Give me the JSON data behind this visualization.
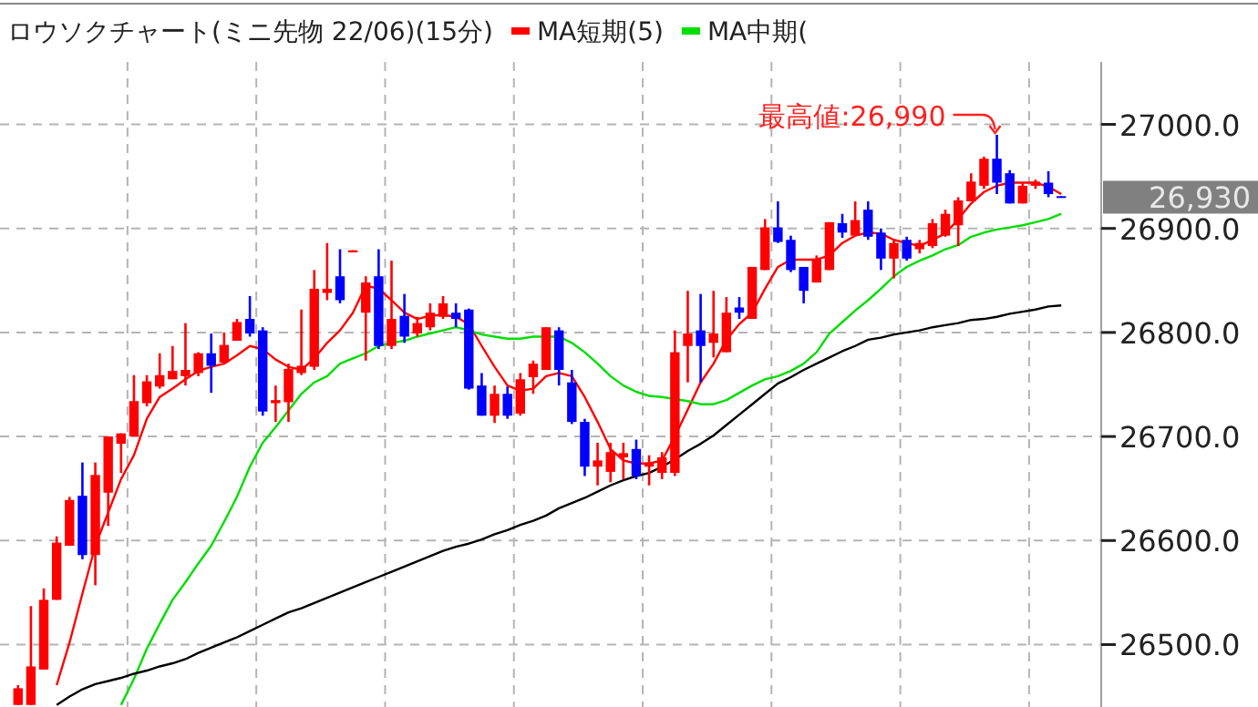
{
  "chart_data": {
    "type": "candlestick",
    "title": "ロウソクチャート(ミニ先物 22/06)(15分)",
    "categories": [
      null,
      null,
      null,
      null,
      null,
      null,
      null,
      null,
      null,
      null,
      null,
      null,
      null,
      null,
      null,
      null,
      null,
      null,
      null,
      null,
      null,
      null,
      null,
      null,
      null,
      null,
      null,
      null,
      null,
      null,
      null,
      null,
      null,
      null,
      null,
      null,
      null,
      null,
      null,
      null,
      null,
      null,
      null,
      null,
      null,
      null,
      null,
      null,
      null,
      null,
      null,
      null,
      null,
      null,
      null,
      null,
      null,
      null,
      null,
      null,
      null,
      null,
      null,
      null,
      null,
      null,
      null,
      null,
      null,
      null,
      null,
      null,
      null,
      null,
      null,
      null,
      null,
      null,
      null,
      null,
      null,
      null
    ],
    "ohlc": [
      [
        26442,
        26461,
        26442,
        26458
      ],
      [
        26442,
        26537,
        26442,
        26479
      ],
      [
        26476,
        26554,
        26476,
        26543
      ],
      [
        26543,
        26604,
        26543,
        26598
      ],
      [
        26595,
        26642,
        26595,
        26639
      ],
      [
        26643,
        26675,
        26582,
        26586
      ],
      [
        26586,
        26675,
        26557,
        26663
      ],
      [
        26646,
        26700,
        26614,
        26700
      ],
      [
        26693,
        26703,
        26665,
        26703
      ],
      [
        26700,
        26759,
        26700,
        26734
      ],
      [
        26732,
        26759,
        26729,
        26753
      ],
      [
        26748,
        26780,
        26746,
        26759
      ],
      [
        26755,
        26787,
        26755,
        26763
      ],
      [
        26758,
        26809,
        26749,
        26764
      ],
      [
        26761,
        26781,
        26758,
        26780
      ],
      [
        26780,
        26799,
        26742,
        26768
      ],
      [
        26771,
        26800,
        26770,
        26788
      ],
      [
        26792,
        26813,
        26792,
        26810
      ],
      [
        26813,
        26835,
        26796,
        26799
      ],
      [
        26802,
        26805,
        26720,
        26724
      ],
      [
        26732,
        26749,
        26714,
        26735
      ],
      [
        26733,
        26770,
        26714,
        26765
      ],
      [
        26761,
        26822,
        26759,
        26768
      ],
      [
        26767,
        26860,
        26764,
        26842
      ],
      [
        26838,
        26886,
        26831,
        26842
      ],
      [
        26854,
        26880,
        26828,
        26831
      ],
      [
        26877,
        26879,
        26877,
        26879
      ],
      [
        26819,
        26854,
        26773,
        26848
      ],
      [
        26854,
        26880,
        26784,
        26787
      ],
      [
        26787,
        26869,
        26784,
        26813
      ],
      [
        26816,
        26837,
        26790,
        26796
      ],
      [
        26799,
        26815,
        26796,
        26809
      ],
      [
        26805,
        26828,
        26802,
        26819
      ],
      [
        26815,
        26835,
        26813,
        26828
      ],
      [
        26819,
        26828,
        26805,
        26813
      ],
      [
        26822,
        26823,
        26745,
        26746
      ],
      [
        26749,
        26761,
        26720,
        26720
      ],
      [
        26720,
        26749,
        26713,
        26741
      ],
      [
        26741,
        26748,
        26717,
        26720
      ],
      [
        26722,
        26761,
        26720,
        26755
      ],
      [
        26757,
        26773,
        26741,
        26770
      ],
      [
        26764,
        26805,
        26764,
        26805
      ],
      [
        26802,
        26805,
        26749,
        26764
      ],
      [
        26752,
        26764,
        26712,
        26714
      ],
      [
        26714,
        26717,
        26662,
        26671
      ],
      [
        26671,
        26694,
        26653,
        26677
      ],
      [
        26666,
        26694,
        26656,
        26685
      ],
      [
        26680,
        26694,
        26659,
        26684
      ],
      [
        26688,
        26697,
        26659,
        26662
      ],
      [
        26671,
        26682,
        26653,
        26675
      ],
      [
        26665,
        26685,
        26659,
        26680
      ],
      [
        26665,
        26802,
        26662,
        26781
      ],
      [
        26787,
        26840,
        26752,
        26799
      ],
      [
        26802,
        26837,
        26752,
        26787
      ],
      [
        26790,
        26840,
        26776,
        26799
      ],
      [
        26781,
        26834,
        26781,
        26819
      ],
      [
        26824,
        26834,
        26813,
        26819
      ],
      [
        26813,
        26863,
        26813,
        26863
      ],
      [
        26860,
        26909,
        26860,
        26901
      ],
      [
        26901,
        26926,
        26886,
        26887
      ],
      [
        26889,
        26893,
        26858,
        26860
      ],
      [
        26863,
        26863,
        26828,
        26840
      ],
      [
        26848,
        26874,
        26848,
        26871
      ],
      [
        26860,
        26906,
        26860,
        26906
      ],
      [
        26905,
        26914,
        26891,
        26896
      ],
      [
        26893,
        26926,
        26893,
        26908
      ],
      [
        26918,
        26926,
        26889,
        26892
      ],
      [
        26896,
        26900,
        26860,
        26871
      ],
      [
        26871,
        26889,
        26852,
        26886
      ],
      [
        26889,
        26892,
        26869,
        26871
      ],
      [
        26880,
        26889,
        26876,
        26886
      ],
      [
        26883,
        26909,
        26881,
        26905
      ],
      [
        26893,
        26918,
        26892,
        26914
      ],
      [
        26903,
        26930,
        26883,
        26927
      ],
      [
        26926,
        26953,
        26926,
        26945
      ],
      [
        26941,
        26969,
        26938,
        26967
      ],
      [
        26967,
        26990,
        26933,
        26944
      ],
      [
        26953,
        26956,
        26924,
        26924
      ],
      [
        26924,
        26944,
        26924,
        26941
      ],
      [
        26941,
        26947,
        26938,
        26945
      ],
      [
        26944,
        26955,
        26930,
        26933
      ],
      [
        26931,
        26931,
        26930,
        26930
      ]
    ],
    "colors": [
      "#ff0000",
      "#ff0000",
      "#ff0000",
      "#ff0000",
      "#ff0000",
      "#0000ff",
      "#ff0000",
      "#ff0000",
      "#ff0000",
      "#ff0000",
      "#ff0000",
      "#ff0000",
      "#ff0000",
      "#ff0000",
      "#ff0000",
      "#0000ff",
      "#ff0000",
      "#ff0000",
      "#0000ff",
      "#0000ff",
      "#ff0000",
      "#ff0000",
      "#ff0000",
      "#ff0000",
      "#ff0000",
      "#0000ff",
      "#ff0000",
      "#ff0000",
      "#0000ff",
      "#ff0000",
      "#0000ff",
      "#ff0000",
      "#ff0000",
      "#ff0000",
      "#0000ff",
      "#0000ff",
      "#0000ff",
      "#ff0000",
      "#0000ff",
      "#ff0000",
      "#ff0000",
      "#ff0000",
      "#0000ff",
      "#0000ff",
      "#0000ff",
      "#ff0000",
      "#ff0000",
      "#ff0000",
      "#0000ff",
      "#ff0000",
      "#ff0000",
      "#ff0000",
      "#ff0000",
      "#0000ff",
      "#ff0000",
      "#ff0000",
      "#0000ff",
      "#ff0000",
      "#ff0000",
      "#0000ff",
      "#0000ff",
      "#0000ff",
      "#ff0000",
      "#ff0000",
      "#0000ff",
      "#ff0000",
      "#0000ff",
      "#0000ff",
      "#ff0000",
      "#0000ff",
      "#ff0000",
      "#ff0000",
      "#ff0000",
      "#ff0000",
      "#ff0000",
      "#ff0000",
      "#0000ff",
      "#0000ff",
      "#ff0000",
      "#ff0000",
      "#0000ff",
      "#0000ff"
    ],
    "series": [
      {
        "type": "line",
        "name": "MA短期(5)",
        "color": "#ff0000",
        "values": [
          null,
          null,
          null,
          26461,
          26502,
          26549,
          26595,
          26627,
          26659,
          26682,
          26717,
          26738,
          26746,
          26755,
          26763,
          26767,
          26770,
          26778,
          26787,
          26784,
          26774,
          26767,
          26764,
          26775,
          26790,
          26802,
          26819,
          26845,
          26842,
          26831,
          26819,
          26813,
          26816,
          26817,
          26815,
          26808,
          26787,
          26767,
          26749,
          26744,
          26746,
          26758,
          26761,
          26758,
          26738,
          26714,
          26688,
          26677,
          26674,
          26674,
          26677,
          26700,
          26726,
          26752,
          26770,
          26793,
          26808,
          26819,
          26842,
          26863,
          26870,
          26870,
          26870,
          26874,
          26886,
          26893,
          26896,
          26895,
          26889,
          26886,
          26883,
          26889,
          26895,
          26909,
          26924,
          26935,
          26941,
          26944,
          26944,
          26944,
          26940,
          26933
        ]
      },
      {
        "type": "line",
        "name": "MA中期(",
        "color": "#00dd00",
        "values": [
          null,
          null,
          null,
          null,
          null,
          null,
          null,
          null,
          26442,
          26467,
          26496,
          26520,
          26543,
          26560,
          26578,
          26595,
          26618,
          26642,
          26671,
          26694,
          26709,
          26725,
          26741,
          26752,
          26758,
          26770,
          26775,
          26780,
          26787,
          26790,
          26792,
          26796,
          26799,
          26802,
          26805,
          26802,
          26798,
          26796,
          26794,
          26794,
          26796,
          26796,
          26796,
          26790,
          26781,
          26770,
          26758,
          26749,
          26743,
          26739,
          26738,
          26736,
          26734,
          26731,
          26731,
          26735,
          26742,
          26749,
          26755,
          26758,
          26763,
          26770,
          26781,
          26799,
          26810,
          26821,
          26831,
          26842,
          26854,
          26863,
          26869,
          26874,
          26880,
          26884,
          26892,
          26896,
          26899,
          26901,
          26903,
          26906,
          26909,
          26914
        ]
      },
      {
        "type": "line",
        "color": "#000000",
        "values": [
          null,
          null,
          null,
          26442,
          26450,
          26457,
          26462,
          26465,
          26468,
          26472,
          26475,
          26479,
          26482,
          26486,
          26492,
          26497,
          26502,
          26507,
          26513,
          26519,
          26525,
          26531,
          26535,
          26540,
          26545,
          26550,
          26555,
          26560,
          26565,
          26570,
          26575,
          26580,
          26585,
          26590,
          26594,
          26597,
          26601,
          26606,
          26610,
          26615,
          26619,
          26624,
          26631,
          26636,
          26641,
          26647,
          26653,
          26658,
          26662,
          26665,
          26671,
          26678,
          26686,
          26693,
          26701,
          26711,
          26721,
          26731,
          26741,
          26751,
          26757,
          26764,
          26770,
          26776,
          26782,
          26787,
          26793,
          26795,
          26798,
          26800,
          26802,
          26805,
          26807,
          26809,
          26812,
          26813,
          26815,
          26818,
          26820,
          26822,
          26825,
          26826
        ]
      }
    ],
    "ylim": [
      26440,
      27060
    ],
    "yticks": [
      {
        "value": 26500,
        "label": "26500.0"
      },
      {
        "value": 26600,
        "label": "26600.0"
      },
      {
        "value": 26700,
        "label": "26700.0"
      },
      {
        "value": 26800,
        "label": "26800.0"
      },
      {
        "value": 26900,
        "label": "26900.0"
      },
      {
        "value": 27000,
        "label": "27000.0"
      }
    ],
    "tick_labels": "y",
    "grid": true,
    "legend": "top",
    "annotations": [
      "最高値:26,990",
      "26,930"
    ]
  }
}
